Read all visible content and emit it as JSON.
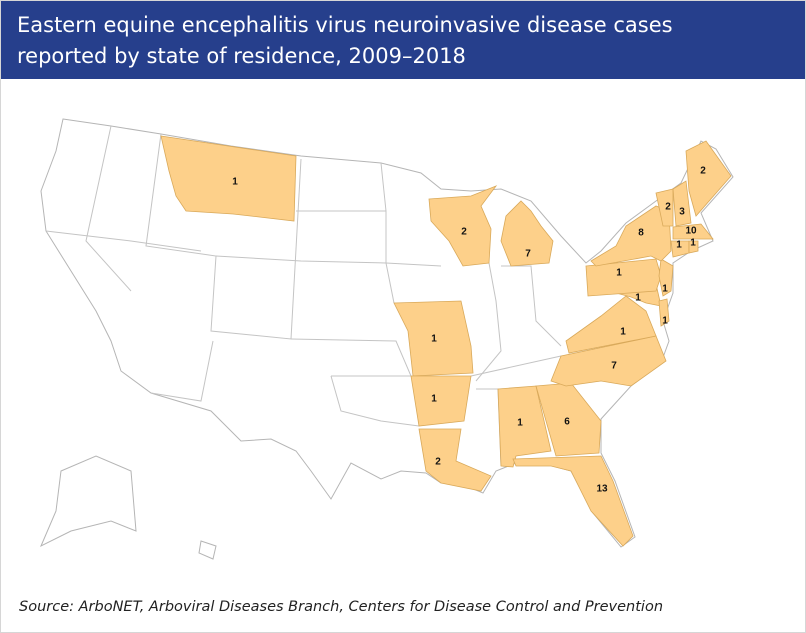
{
  "header": {
    "title": "Eastern equine encephalitis virus neuroinvasive disease cases reported by state of residence, 2009–2018"
  },
  "map": {
    "highlight_color": "#fdd08a",
    "regions": [
      {
        "value": 1
      },
      {
        "value": 2
      },
      {
        "value": 7
      },
      {
        "value": 1
      },
      {
        "value": 1
      },
      {
        "value": 2
      },
      {
        "value": 1
      },
      {
        "value": 6
      },
      {
        "value": 13
      },
      {
        "value": 7
      },
      {
        "value": 1
      },
      {
        "value": 1
      },
      {
        "value": 1
      },
      {
        "value": 1
      },
      {
        "value": 1
      },
      {
        "value": 8
      },
      {
        "value": 2
      },
      {
        "value": 3
      },
      {
        "value": 2
      },
      {
        "value": 10
      },
      {
        "value": 1
      },
      {
        "value": 1
      }
    ]
  },
  "source": "Source: ArboNET, Arboviral Diseases Branch, Centers for Disease Control and Prevention"
}
